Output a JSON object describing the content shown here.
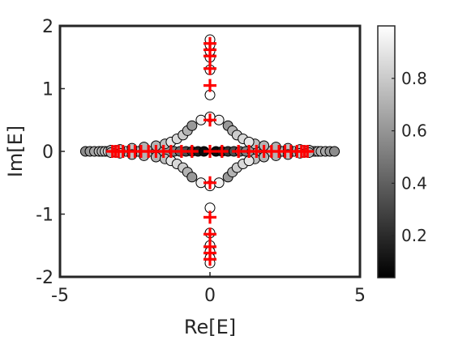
{
  "chart_data": {
    "type": "scatter",
    "title": "",
    "xlabel": "Re[E]",
    "ylabel": "Im[E]",
    "xlim": [
      -5,
      5
    ],
    "ylim": [
      -2,
      2
    ],
    "x_ticks": [
      "-5",
      "0",
      "5"
    ],
    "y_ticks": [
      "-2",
      "-1",
      "0",
      "1",
      "2"
    ],
    "grid": false,
    "colorbar": {
      "range": [
        0.04,
        1.0
      ],
      "colormap": "gray",
      "ticks": [
        "0.2",
        "0.4",
        "0.6",
        "0.8"
      ]
    },
    "series": [
      {
        "marker": "circle",
        "edge_color": "#000000",
        "points": [
          {
            "x": -4.15,
            "y": 0.0,
            "c": 0.55
          },
          {
            "x": -4.0,
            "y": 0.0,
            "c": 0.6
          },
          {
            "x": -3.85,
            "y": 0.0,
            "c": 0.65
          },
          {
            "x": -3.7,
            "y": 0.0,
            "c": 0.7
          },
          {
            "x": -3.6,
            "y": 0.0,
            "c": 0.72
          },
          {
            "x": -3.5,
            "y": 0.0,
            "c": 0.75
          },
          {
            "x": -3.4,
            "y": 0.0,
            "c": 0.78
          },
          {
            "x": -3.3,
            "y": 0.0,
            "c": 0.8
          },
          {
            "x": -3.2,
            "y": 0.0,
            "c": 0.82
          },
          {
            "x": -3.0,
            "y": 0.0,
            "c": 0.85
          },
          {
            "x": -2.8,
            "y": 0.0,
            "c": 0.85
          },
          {
            "x": -2.6,
            "y": 0.0,
            "c": 0.82
          },
          {
            "x": -2.4,
            "y": 0.0,
            "c": 0.8
          },
          {
            "x": -2.2,
            "y": 0.0,
            "c": 0.78
          },
          {
            "x": -2.0,
            "y": 0.0,
            "c": 0.75
          },
          {
            "x": -1.8,
            "y": 0.0,
            "c": 0.7
          },
          {
            "x": -1.6,
            "y": 0.0,
            "c": 0.65
          },
          {
            "x": -1.4,
            "y": 0.0,
            "c": 0.6
          },
          {
            "x": -1.2,
            "y": 0.0,
            "c": 0.5
          },
          {
            "x": -1.0,
            "y": 0.0,
            "c": 0.4
          },
          {
            "x": -0.8,
            "y": 0.0,
            "c": 0.3
          },
          {
            "x": -0.6,
            "y": 0.0,
            "c": 0.2
          },
          {
            "x": -0.4,
            "y": 0.0,
            "c": 0.1
          },
          {
            "x": -0.2,
            "y": 0.0,
            "c": 0.05
          },
          {
            "x": 0.2,
            "y": 0.0,
            "c": 0.05
          },
          {
            "x": 0.4,
            "y": 0.0,
            "c": 0.1
          },
          {
            "x": 0.6,
            "y": 0.0,
            "c": 0.2
          },
          {
            "x": 0.8,
            "y": 0.0,
            "c": 0.3
          },
          {
            "x": 1.0,
            "y": 0.0,
            "c": 0.4
          },
          {
            "x": 1.2,
            "y": 0.0,
            "c": 0.5
          },
          {
            "x": 1.4,
            "y": 0.0,
            "c": 0.6
          },
          {
            "x": 1.6,
            "y": 0.0,
            "c": 0.65
          },
          {
            "x": 1.8,
            "y": 0.0,
            "c": 0.7
          },
          {
            "x": 2.0,
            "y": 0.0,
            "c": 0.75
          },
          {
            "x": 2.2,
            "y": 0.0,
            "c": 0.78
          },
          {
            "x": 2.4,
            "y": 0.0,
            "c": 0.8
          },
          {
            "x": 2.6,
            "y": 0.0,
            "c": 0.82
          },
          {
            "x": 2.8,
            "y": 0.0,
            "c": 0.85
          },
          {
            "x": 3.0,
            "y": 0.0,
            "c": 0.85
          },
          {
            "x": 3.2,
            "y": 0.0,
            "c": 0.82
          },
          {
            "x": 3.3,
            "y": 0.0,
            "c": 0.8
          },
          {
            "x": 3.4,
            "y": 0.0,
            "c": 0.78
          },
          {
            "x": 3.5,
            "y": 0.0,
            "c": 0.75
          },
          {
            "x": 3.6,
            "y": 0.0,
            "c": 0.72
          },
          {
            "x": 3.7,
            "y": 0.0,
            "c": 0.7
          },
          {
            "x": 3.85,
            "y": 0.0,
            "c": 0.65
          },
          {
            "x": 4.0,
            "y": 0.0,
            "c": 0.6
          },
          {
            "x": 4.15,
            "y": 0.0,
            "c": 0.55
          },
          {
            "x": -3.3,
            "y": 0.02,
            "c": 0.7
          },
          {
            "x": -3.0,
            "y": 0.03,
            "c": 0.75
          },
          {
            "x": -2.6,
            "y": 0.05,
            "c": 0.75
          },
          {
            "x": -2.2,
            "y": 0.07,
            "c": 0.7
          },
          {
            "x": -1.8,
            "y": 0.09,
            "c": 0.7
          },
          {
            "x": -1.5,
            "y": 0.12,
            "c": 0.75
          },
          {
            "x": 1.5,
            "y": 0.12,
            "c": 0.75
          },
          {
            "x": 1.8,
            "y": 0.09,
            "c": 0.7
          },
          {
            "x": 2.2,
            "y": 0.07,
            "c": 0.7
          },
          {
            "x": 2.6,
            "y": 0.05,
            "c": 0.75
          },
          {
            "x": 3.0,
            "y": 0.03,
            "c": 0.75
          },
          {
            "x": 3.3,
            "y": 0.02,
            "c": 0.7
          },
          {
            "x": -3.3,
            "y": -0.02,
            "c": 0.7
          },
          {
            "x": -3.0,
            "y": -0.03,
            "c": 0.75
          },
          {
            "x": -2.6,
            "y": -0.05,
            "c": 0.75
          },
          {
            "x": -2.2,
            "y": -0.07,
            "c": 0.7
          },
          {
            "x": -1.8,
            "y": -0.09,
            "c": 0.7
          },
          {
            "x": -1.5,
            "y": -0.12,
            "c": 0.75
          },
          {
            "x": 1.5,
            "y": -0.12,
            "c": 0.75
          },
          {
            "x": 1.8,
            "y": -0.09,
            "c": 0.7
          },
          {
            "x": 2.2,
            "y": -0.07,
            "c": 0.7
          },
          {
            "x": 2.6,
            "y": -0.05,
            "c": 0.75
          },
          {
            "x": 3.0,
            "y": -0.03,
            "c": 0.75
          },
          {
            "x": 3.3,
            "y": -0.02,
            "c": 0.7
          },
          {
            "x": -1.3,
            "y": 0.15,
            "c": 0.9
          },
          {
            "x": -1.1,
            "y": 0.2,
            "c": 0.85
          },
          {
            "x": -0.9,
            "y": 0.26,
            "c": 0.8
          },
          {
            "x": -0.75,
            "y": 0.33,
            "c": 0.7
          },
          {
            "x": -0.6,
            "y": 0.41,
            "c": 0.6
          },
          {
            "x": -0.3,
            "y": 0.5,
            "c": 0.95
          },
          {
            "x": 0.3,
            "y": 0.5,
            "c": 0.95
          },
          {
            "x": 0.6,
            "y": 0.41,
            "c": 0.6
          },
          {
            "x": 0.75,
            "y": 0.33,
            "c": 0.7
          },
          {
            "x": 0.9,
            "y": 0.26,
            "c": 0.8
          },
          {
            "x": 1.1,
            "y": 0.2,
            "c": 0.85
          },
          {
            "x": 1.3,
            "y": 0.15,
            "c": 0.9
          },
          {
            "x": -1.3,
            "y": -0.15,
            "c": 0.9
          },
          {
            "x": -1.1,
            "y": -0.2,
            "c": 0.85
          },
          {
            "x": -0.9,
            "y": -0.26,
            "c": 0.8
          },
          {
            "x": -0.75,
            "y": -0.33,
            "c": 0.7
          },
          {
            "x": -0.6,
            "y": -0.41,
            "c": 0.6
          },
          {
            "x": -0.3,
            "y": -0.5,
            "c": 0.95
          },
          {
            "x": 0.3,
            "y": -0.5,
            "c": 0.95
          },
          {
            "x": 0.6,
            "y": -0.41,
            "c": 0.6
          },
          {
            "x": 0.75,
            "y": -0.33,
            "c": 0.7
          },
          {
            "x": 0.9,
            "y": -0.26,
            "c": 0.8
          },
          {
            "x": 1.1,
            "y": -0.2,
            "c": 0.85
          },
          {
            "x": 1.3,
            "y": -0.15,
            "c": 0.9
          },
          {
            "x": 0.0,
            "y": 0.55,
            "c": 1.0
          },
          {
            "x": 0.0,
            "y": 0.9,
            "c": 1.0
          },
          {
            "x": 0.0,
            "y": 1.3,
            "c": 1.0
          },
          {
            "x": 0.0,
            "y": 1.5,
            "c": 1.0
          },
          {
            "x": 0.0,
            "y": 1.6,
            "c": 1.0
          },
          {
            "x": 0.0,
            "y": 1.7,
            "c": 1.0
          },
          {
            "x": 0.0,
            "y": 1.78,
            "c": 1.0
          },
          {
            "x": 0.0,
            "y": -0.55,
            "c": 1.0
          },
          {
            "x": 0.0,
            "y": -0.9,
            "c": 1.0
          },
          {
            "x": 0.0,
            "y": -1.3,
            "c": 1.0
          },
          {
            "x": 0.0,
            "y": -1.5,
            "c": 1.0
          },
          {
            "x": 0.0,
            "y": -1.6,
            "c": 1.0
          },
          {
            "x": 0.0,
            "y": -1.7,
            "c": 1.0
          },
          {
            "x": 0.0,
            "y": -1.78,
            "c": 1.0
          }
        ]
      },
      {
        "marker": "plus",
        "color": "#ff0000",
        "points": [
          {
            "x": -3.25,
            "y": 0.0
          },
          {
            "x": -3.15,
            "y": 0.0
          },
          {
            "x": -3.05,
            "y": 0.0
          },
          {
            "x": -2.9,
            "y": 0.0
          },
          {
            "x": -2.7,
            "y": 0.0
          },
          {
            "x": -2.5,
            "y": 0.0
          },
          {
            "x": -2.3,
            "y": 0.0
          },
          {
            "x": -2.05,
            "y": 0.0
          },
          {
            "x": -1.8,
            "y": 0.0
          },
          {
            "x": -1.55,
            "y": 0.0
          },
          {
            "x": -1.3,
            "y": 0.0
          },
          {
            "x": -0.95,
            "y": 0.0
          },
          {
            "x": -0.6,
            "y": 0.0
          },
          {
            "x": 0.0,
            "y": 0.0
          },
          {
            "x": 0.4,
            "y": 0.0
          },
          {
            "x": 0.95,
            "y": 0.0
          },
          {
            "x": 1.3,
            "y": 0.0
          },
          {
            "x": 1.55,
            "y": 0.0
          },
          {
            "x": 1.8,
            "y": 0.0
          },
          {
            "x": 2.05,
            "y": 0.0
          },
          {
            "x": 2.3,
            "y": 0.0
          },
          {
            "x": 2.5,
            "y": 0.0
          },
          {
            "x": 2.7,
            "y": 0.0
          },
          {
            "x": 2.9,
            "y": 0.0
          },
          {
            "x": 3.05,
            "y": 0.0
          },
          {
            "x": 3.15,
            "y": 0.0
          },
          {
            "x": 3.25,
            "y": 0.0
          },
          {
            "x": 0.0,
            "y": 0.5
          },
          {
            "x": 0.0,
            "y": 1.05
          },
          {
            "x": 0.0,
            "y": 1.32
          },
          {
            "x": 0.0,
            "y": 1.52
          },
          {
            "x": 0.0,
            "y": 1.62
          },
          {
            "x": 0.0,
            "y": 1.72
          },
          {
            "x": 0.0,
            "y": -0.5
          },
          {
            "x": 0.0,
            "y": -1.05
          },
          {
            "x": 0.0,
            "y": -1.32
          },
          {
            "x": 0.0,
            "y": -1.52
          },
          {
            "x": 0.0,
            "y": -1.62
          },
          {
            "x": 0.0,
            "y": -1.72
          }
        ]
      }
    ]
  }
}
